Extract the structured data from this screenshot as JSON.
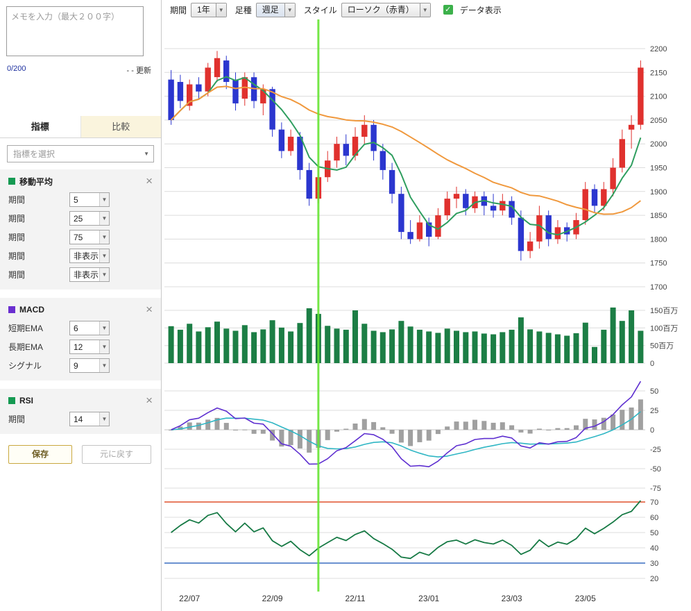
{
  "icons": {
    "arrow_down": "▼",
    "close": "×",
    "check": "✓"
  },
  "sidebar": {
    "memo": {
      "placeholder": "メモを入力（最大２００字）",
      "value": "",
      "counter": "0/200",
      "updated_value": "- -",
      "update_label": "更新"
    },
    "tabs": [
      {
        "label": "指標",
        "active": true
      },
      {
        "label": "比較",
        "active": false
      }
    ],
    "indicator_select_placeholder": "指標を選択",
    "panels": [
      {
        "id": "ma",
        "title": "移動平均",
        "color": "#159a52",
        "rows": [
          {
            "label": "期間",
            "value": "5"
          },
          {
            "label": "期間",
            "value": "25"
          },
          {
            "label": "期間",
            "value": "75"
          },
          {
            "label": "期間",
            "value": "非表示"
          },
          {
            "label": "期間",
            "value": "非表示"
          }
        ]
      },
      {
        "id": "macd",
        "title": "MACD",
        "color": "#6a2fd0",
        "rows": [
          {
            "label": "短期EMA",
            "value": "6"
          },
          {
            "label": "長期EMA",
            "value": "12"
          },
          {
            "label": "シグナル",
            "value": "9"
          }
        ]
      },
      {
        "id": "rsi",
        "title": "RSI",
        "color": "#159a52",
        "rows": [
          {
            "label": "期間",
            "value": "14"
          }
        ]
      }
    ],
    "save_button": "保存",
    "reset_button": "元に戻す"
  },
  "toolbar": {
    "period_label": "期間",
    "period_value": "1年",
    "bartype_label": "足種",
    "bartype_value": "週足",
    "style_label": "スタイル",
    "style_value": "ローソク（赤青）",
    "data_display_label": "データ表示",
    "data_display_checked": true
  },
  "chart_data": {
    "type": "candlestick",
    "period": "1年",
    "interval": "週足",
    "price_ticks": [
      2200,
      2150,
      2100,
      2050,
      2000,
      1950,
      1900,
      1850,
      1800,
      1750,
      1700
    ],
    "price_range": [
      1700,
      2200
    ],
    "candles": [
      [
        2135,
        2155,
        2040,
        2050
      ],
      [
        2130,
        2145,
        2075,
        2090
      ],
      [
        2080,
        2135,
        2070,
        2125
      ],
      [
        2125,
        2140,
        2095,
        2110
      ],
      [
        2110,
        2170,
        2100,
        2160
      ],
      [
        2140,
        2195,
        2130,
        2180
      ],
      [
        2175,
        2185,
        2115,
        2130
      ],
      [
        2135,
        2150,
        2070,
        2085
      ],
      [
        2095,
        2150,
        2080,
        2140
      ],
      [
        2140,
        2150,
        2075,
        2090
      ],
      [
        2085,
        2125,
        2060,
        2115
      ],
      [
        2115,
        2120,
        2015,
        2030
      ],
      [
        2030,
        2045,
        1970,
        1985
      ],
      [
        1985,
        2030,
        1975,
        2015
      ],
      [
        2015,
        2025,
        1925,
        1945
      ],
      [
        1945,
        1960,
        1870,
        1885
      ],
      [
        1885,
        1950,
        1875,
        1930
      ],
      [
        1930,
        1985,
        1920,
        1965
      ],
      [
        1965,
        2015,
        1950,
        2000
      ],
      [
        2000,
        2020,
        1955,
        1975
      ],
      [
        1975,
        2035,
        1965,
        2015
      ],
      [
        2015,
        2060,
        2000,
        2040
      ],
      [
        2040,
        2050,
        1965,
        1985
      ],
      [
        1985,
        2000,
        1925,
        1945
      ],
      [
        1945,
        1960,
        1875,
        1895
      ],
      [
        1895,
        1910,
        1800,
        1815
      ],
      [
        1815,
        1840,
        1790,
        1800
      ],
      [
        1800,
        1850,
        1795,
        1835
      ],
      [
        1835,
        1845,
        1785,
        1805
      ],
      [
        1805,
        1865,
        1800,
        1850
      ],
      [
        1850,
        1900,
        1840,
        1885
      ],
      [
        1885,
        1910,
        1865,
        1895
      ],
      [
        1895,
        1905,
        1850,
        1865
      ],
      [
        1865,
        1900,
        1855,
        1890
      ],
      [
        1890,
        1900,
        1850,
        1870
      ],
      [
        1870,
        1895,
        1845,
        1860
      ],
      [
        1860,
        1895,
        1850,
        1880
      ],
      [
        1880,
        1890,
        1830,
        1845
      ],
      [
        1845,
        1860,
        1755,
        1775
      ],
      [
        1775,
        1815,
        1760,
        1795
      ],
      [
        1795,
        1870,
        1780,
        1850
      ],
      [
        1850,
        1860,
        1785,
        1800
      ],
      [
        1800,
        1840,
        1790,
        1825
      ],
      [
        1825,
        1835,
        1795,
        1810
      ],
      [
        1810,
        1855,
        1800,
        1840
      ],
      [
        1840,
        1920,
        1830,
        1905
      ],
      [
        1905,
        1915,
        1855,
        1870
      ],
      [
        1870,
        1920,
        1860,
        1905
      ],
      [
        1905,
        1970,
        1890,
        1950
      ],
      [
        1950,
        2030,
        1940,
        2010
      ],
      [
        2030,
        2060,
        1990,
        2040
      ],
      [
        2040,
        2175,
        2030,
        2160
      ]
    ],
    "volumes": [
      105,
      95,
      112,
      90,
      102,
      118,
      98,
      92,
      108,
      88,
      96,
      122,
      101,
      90,
      114,
      156,
      140,
      106,
      98,
      95,
      150,
      112,
      92,
      88,
      96,
      120,
      104,
      95,
      90,
      86,
      98,
      92,
      88,
      90,
      84,
      82,
      88,
      95,
      130,
      96,
      90,
      86,
      82,
      78,
      85,
      115,
      46,
      95,
      158,
      120,
      150,
      92
    ],
    "volume_ticks": [
      {
        "v": 150,
        "label": "150百万"
      },
      {
        "v": 100,
        "label": "100百万"
      },
      {
        "v": 50,
        "label": "50百万"
      },
      {
        "v": 0,
        "label": "0"
      }
    ],
    "ma_periods": [
      5,
      25
    ],
    "macd": {
      "short": 6,
      "long": 12,
      "signal": 9
    },
    "macd_ticks": [
      50,
      25,
      0,
      -25,
      -50,
      -75
    ],
    "rsi": {
      "period": 14,
      "overbought": 70,
      "oversold": 30
    },
    "rsi_ticks": [
      70,
      60,
      50,
      40,
      30,
      20
    ],
    "x_labels": [
      "22/07",
      "22/09",
      "22/11",
      "23/01",
      "23/03",
      "23/05"
    ],
    "x_label_indices": [
      2,
      11,
      20,
      28,
      37,
      45
    ],
    "cursor_index": 16,
    "colors": {
      "up": "#e0312e",
      "down": "#2b36cf",
      "ma_short": "#2f9e5f",
      "ma_long": "#f0993e",
      "volume": "#1c7e45",
      "macd": "#5e2fd0",
      "macd_signal": "#2fb6c4",
      "macd_hist": "#a0a0a0",
      "rsi": "#177a45",
      "rsi_over": "#e0502d",
      "rsi_under": "#3a6fc0",
      "cursor": "#66e533",
      "grid": "#dcdcdc",
      "axis_text": "#444"
    }
  }
}
